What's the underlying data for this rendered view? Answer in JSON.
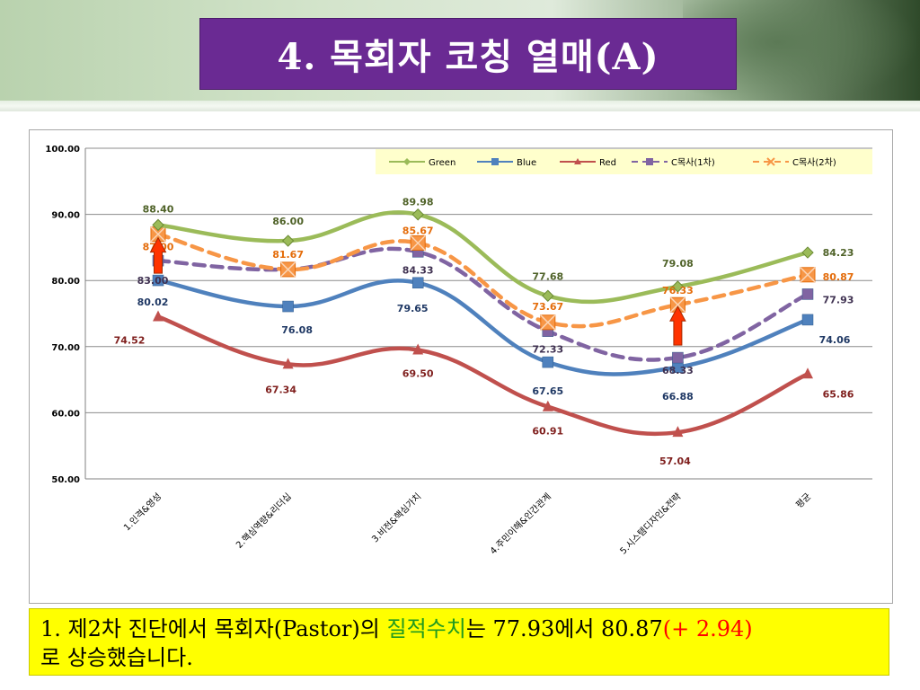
{
  "slide": {
    "title": "4. 목회자 코칭 열매(A)",
    "caption": {
      "part1": "1. 제2차 진단에서 목회자(Pastor)의 ",
      "highlight": "질적수치",
      "part2": "는 77.93에서 80.87",
      "delta": "(+ 2.94)",
      "part3": "로 상승했습니다."
    },
    "colors": {
      "title_bg": "#6a2a93",
      "caption_bg": "#ffff00",
      "highlight": "#1f9a1f",
      "delta": "#ff0000"
    }
  },
  "chart_data": {
    "type": "line",
    "categories": [
      "1.인격&영성",
      "2.핵심역량&리더십",
      "3.비전&핵심가치",
      "4.주민이해&인간관계",
      "5.시스템디자인&전략",
      "평균"
    ],
    "ylim": [
      50,
      100
    ],
    "yticks": [
      "50.00",
      "60.00",
      "70.00",
      "80.00",
      "90.00",
      "100.00"
    ],
    "grid": true,
    "legend_position": "top-right",
    "series": [
      {
        "name": "Green",
        "color": "#9bbb59",
        "marker": "diamond",
        "dashed": false,
        "values": [
          88.4,
          86.0,
          89.98,
          77.68,
          79.08,
          84.23
        ],
        "labels": [
          "88.40",
          "86.00",
          "89.98",
          "77.68",
          "79.08",
          "84.23"
        ]
      },
      {
        "name": "Blue",
        "color": "#4f81bd",
        "marker": "square",
        "dashed": false,
        "values": [
          80.02,
          76.08,
          79.65,
          67.65,
          66.88,
          74.06
        ],
        "labels": [
          "80.02",
          "76.08",
          "79.65",
          "67.65",
          "66.88",
          "74.06"
        ]
      },
      {
        "name": "Red",
        "color": "#c0504d",
        "marker": "triangle",
        "dashed": false,
        "values": [
          74.52,
          67.34,
          69.5,
          60.91,
          57.04,
          65.86
        ],
        "labels": [
          "74.52",
          "67.34",
          "69.50",
          "60.91",
          "57.04",
          "65.86"
        ]
      },
      {
        "name": "C목사(1차)",
        "color": "#8064a2",
        "marker": "square",
        "dashed": true,
        "values": [
          83.0,
          81.67,
          84.33,
          72.33,
          68.33,
          77.93
        ],
        "labels": [
          "83.00",
          "81.67",
          "84.33",
          "72.33",
          "68.33",
          "77.93"
        ]
      },
      {
        "name": "C목사(2차)",
        "color": "#f79646",
        "marker": "x-square",
        "dashed": true,
        "values": [
          87.0,
          81.67,
          85.67,
          73.67,
          76.33,
          80.87
        ],
        "labels": [
          "87.00",
          "81.67",
          "85.67",
          "73.67",
          "76.33",
          "80.87"
        ]
      }
    ],
    "annotations": [
      {
        "type": "up-arrow",
        "category": "1.인격&영성",
        "color": "#ff3300"
      },
      {
        "type": "up-arrow",
        "category": "5.시스템디자인&전략",
        "color": "#ff3300"
      }
    ]
  }
}
